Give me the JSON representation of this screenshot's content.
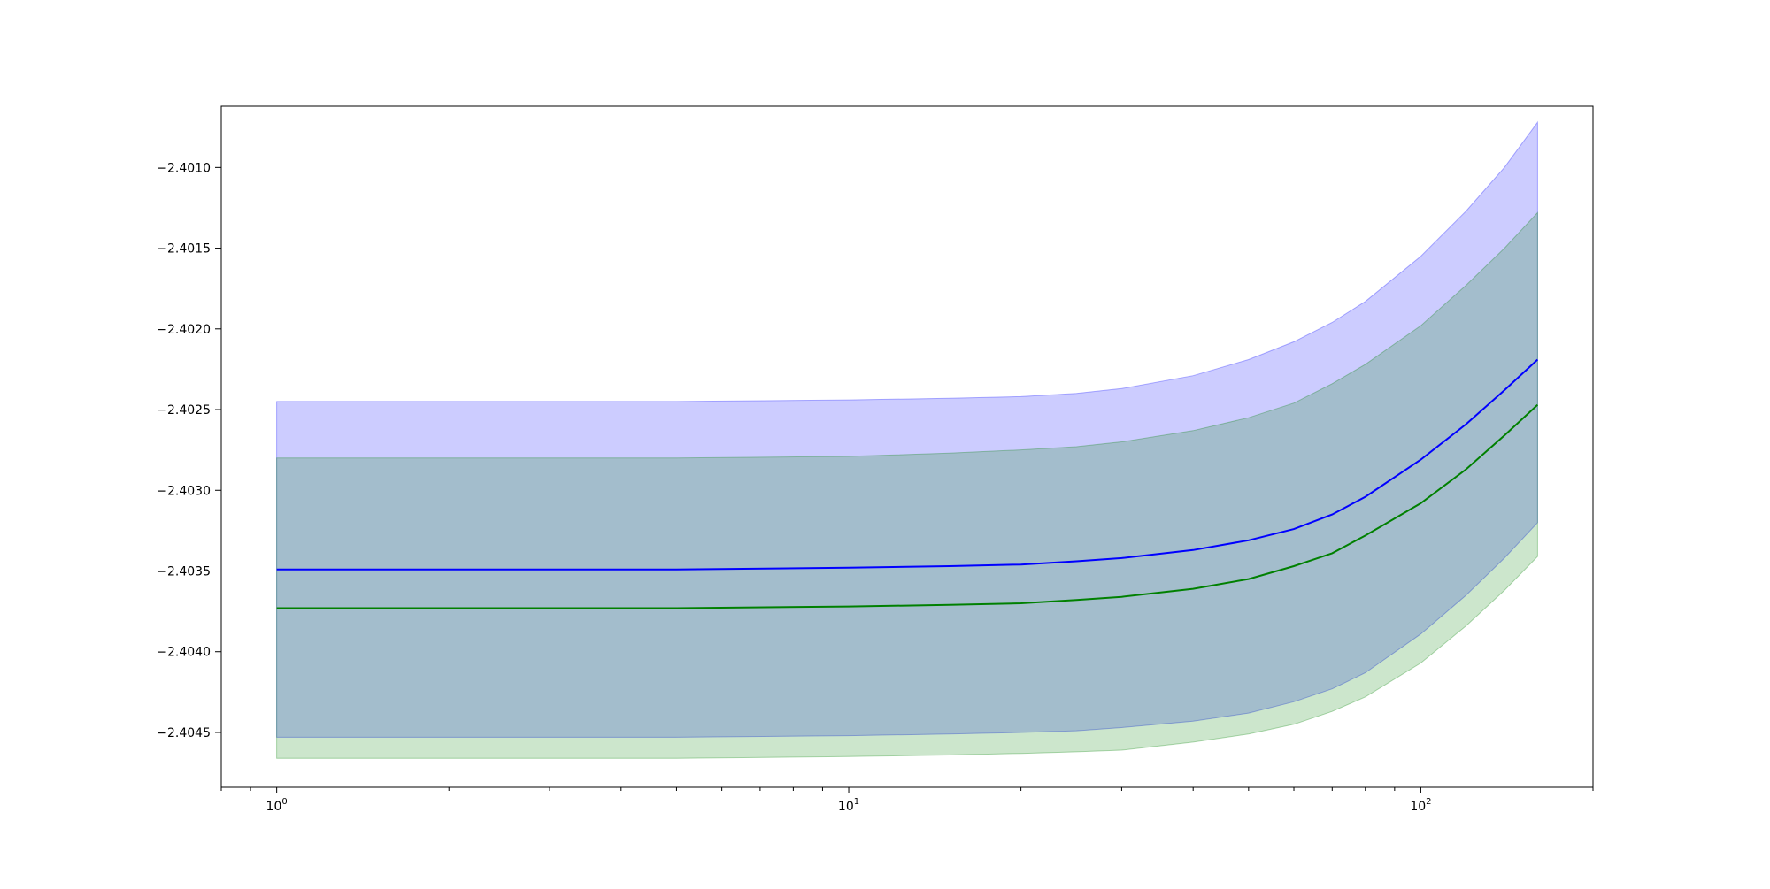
{
  "chart_data": {
    "type": "line",
    "title": "",
    "xlabel": "",
    "ylabel": "",
    "x_scale": "log",
    "xlim": [
      0.8,
      200
    ],
    "ylim": [
      -2.40484,
      -2.40062
    ],
    "grid": false,
    "legend": "none",
    "x_ticks": [
      {
        "value": 1,
        "base": "10",
        "exp": "0"
      },
      {
        "value": 10,
        "base": "10",
        "exp": "1"
      },
      {
        "value": 100,
        "base": "10",
        "exp": "2"
      }
    ],
    "y_ticks": [
      {
        "value": -2.401,
        "label": "−2.4010"
      },
      {
        "value": -2.4015,
        "label": "−2.4015"
      },
      {
        "value": -2.402,
        "label": "−2.4020"
      },
      {
        "value": -2.4025,
        "label": "−2.4025"
      },
      {
        "value": -2.403,
        "label": "−2.4030"
      },
      {
        "value": -2.4035,
        "label": "−2.4035"
      },
      {
        "value": -2.404,
        "label": "−2.4040"
      },
      {
        "value": -2.4045,
        "label": "−2.4045"
      }
    ],
    "x": [
      1,
      2,
      5,
      10,
      15,
      20,
      25,
      30,
      40,
      50,
      60,
      70,
      80,
      100,
      120,
      140,
      160
    ],
    "series": [
      {
        "color": "#0000ff",
        "band_color": "#0000ff",
        "band_opacity": 0.2,
        "values": [
          -2.40349,
          -2.40349,
          -2.40349,
          -2.40348,
          -2.40347,
          -2.40346,
          -2.40344,
          -2.40342,
          -2.40337,
          -2.40331,
          -2.40324,
          -2.40315,
          -2.40304,
          -2.40281,
          -2.40259,
          -2.40238,
          -2.40219
        ],
        "upper": [
          -2.40245,
          -2.40245,
          -2.40245,
          -2.40244,
          -2.40243,
          -2.40242,
          -2.4024,
          -2.40237,
          -2.40229,
          -2.40219,
          -2.40208,
          -2.40196,
          -2.40183,
          -2.40155,
          -2.40127,
          -2.401,
          -2.40072
        ],
        "lower": [
          -2.40453,
          -2.40453,
          -2.40453,
          -2.40452,
          -2.40451,
          -2.4045,
          -2.40449,
          -2.40447,
          -2.40443,
          -2.40438,
          -2.40431,
          -2.40423,
          -2.40413,
          -2.40389,
          -2.40365,
          -2.40342,
          -2.4032
        ]
      },
      {
        "color": "#008000",
        "band_color": "#008000",
        "band_opacity": 0.2,
        "values": [
          -2.40373,
          -2.40373,
          -2.40373,
          -2.40372,
          -2.40371,
          -2.4037,
          -2.40368,
          -2.40366,
          -2.40361,
          -2.40355,
          -2.40347,
          -2.40339,
          -2.40328,
          -2.40308,
          -2.40287,
          -2.40266,
          -2.40247
        ],
        "upper": [
          -2.4028,
          -2.4028,
          -2.4028,
          -2.40279,
          -2.40277,
          -2.40275,
          -2.40273,
          -2.4027,
          -2.40263,
          -2.40255,
          -2.40246,
          -2.40234,
          -2.40222,
          -2.40198,
          -2.40173,
          -2.4015,
          -2.40128
        ],
        "lower": [
          -2.40466,
          -2.40466,
          -2.40466,
          -2.40465,
          -2.40464,
          -2.40463,
          -2.40462,
          -2.40461,
          -2.40456,
          -2.40451,
          -2.40445,
          -2.40437,
          -2.40428,
          -2.40407,
          -2.40384,
          -2.40362,
          -2.40341
        ]
      }
    ]
  }
}
